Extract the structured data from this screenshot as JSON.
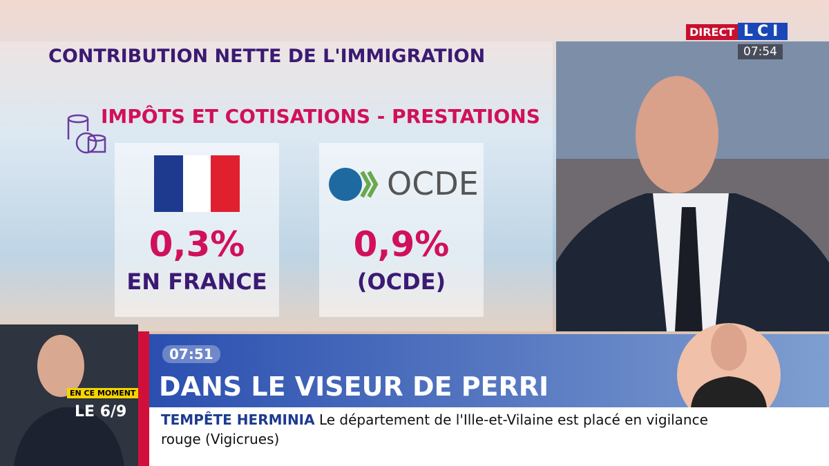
{
  "header": {
    "live": "DIRECT",
    "channel": "LCI",
    "clock": "07:54"
  },
  "infographic": {
    "title": "CONTRIBUTION NETTE DE L'IMMIGRATION",
    "subtitle": "IMPÔTS ET COTISATIONS - PRESTATIONS",
    "cards": [
      {
        "value": "0,3%",
        "label": "EN FRANCE"
      },
      {
        "logo": "OCDE",
        "value": "0,9%",
        "label": "(OCDE)"
      }
    ]
  },
  "lower_third": {
    "time": "07:51",
    "title": "DANS LE VISEUR DE PERRI"
  },
  "now": {
    "tag": "EN CE MOMENT",
    "show": "LE 6/9"
  },
  "ticker": {
    "headline": "TEMPÊTE HERMINIA",
    "text": "Le département de l'Ille-et-Vilaine est placé en vigilance rouge (Vigicrues)"
  }
}
